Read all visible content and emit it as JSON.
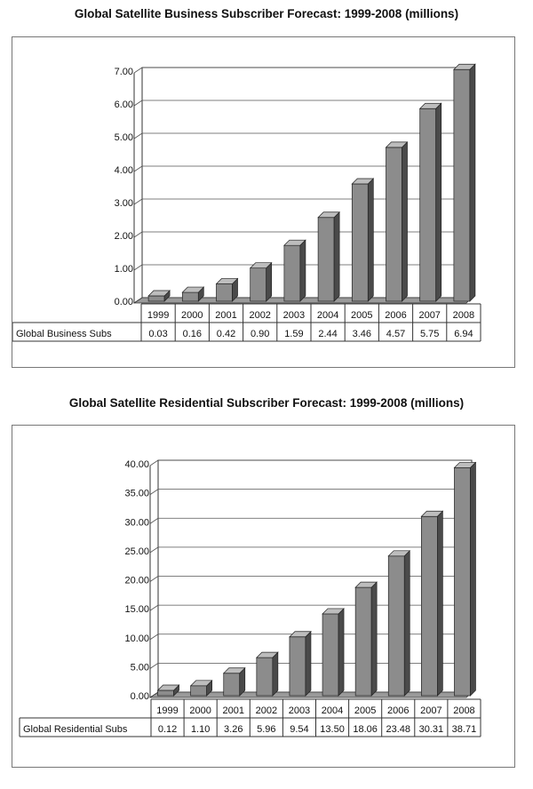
{
  "chart_data": [
    {
      "type": "bar",
      "title": "Global Satellite Business Subscriber Forecast: 1999-2008 (millions)",
      "categories": [
        "1999",
        "2000",
        "2001",
        "2002",
        "2003",
        "2004",
        "2005",
        "2006",
        "2007",
        "2008"
      ],
      "series": [
        {
          "name": "Global Business Subs",
          "values": [
            0.03,
            0.16,
            0.42,
            0.9,
            1.59,
            2.44,
            3.46,
            4.57,
            5.75,
            6.94
          ],
          "labels": [
            "0.03",
            "0.16",
            "0.42",
            "0.90",
            "1.59",
            "2.44",
            "3.46",
            "4.57",
            "5.75",
            "6.94"
          ]
        }
      ],
      "ylim": [
        0,
        7
      ],
      "yticks": [
        "0.00",
        "1.00",
        "2.00",
        "3.00",
        "4.00",
        "5.00",
        "6.00",
        "7.00"
      ],
      "grid": true,
      "legend": "data-table"
    },
    {
      "type": "bar",
      "title": "Global Satellite Residential Subscriber Forecast: 1999-2008 (millions)",
      "categories": [
        "1999",
        "2000",
        "2001",
        "2002",
        "2003",
        "2004",
        "2005",
        "2006",
        "2007",
        "2008"
      ],
      "series": [
        {
          "name": "Global Residential Subs",
          "values": [
            0.12,
            1.1,
            3.26,
            5.96,
            9.54,
            13.5,
            18.06,
            23.48,
            30.31,
            38.71
          ],
          "labels": [
            "0.12",
            "1.10",
            "3.26",
            "5.96",
            "9.54",
            "13.50",
            "18.06",
            "23.48",
            "30.31",
            "38.71"
          ]
        }
      ],
      "ylim": [
        0,
        40
      ],
      "yticks": [
        "0.00",
        "5.00",
        "10.00",
        "15.00",
        "20.00",
        "25.00",
        "30.00",
        "35.00",
        "40.00"
      ],
      "grid": true,
      "legend": "data-table"
    }
  ],
  "colors": {
    "bar_front": "#8c8c8c",
    "bar_side": "#4a4a4a",
    "bar_top": "#bdbdbd",
    "grid": "#555555"
  }
}
